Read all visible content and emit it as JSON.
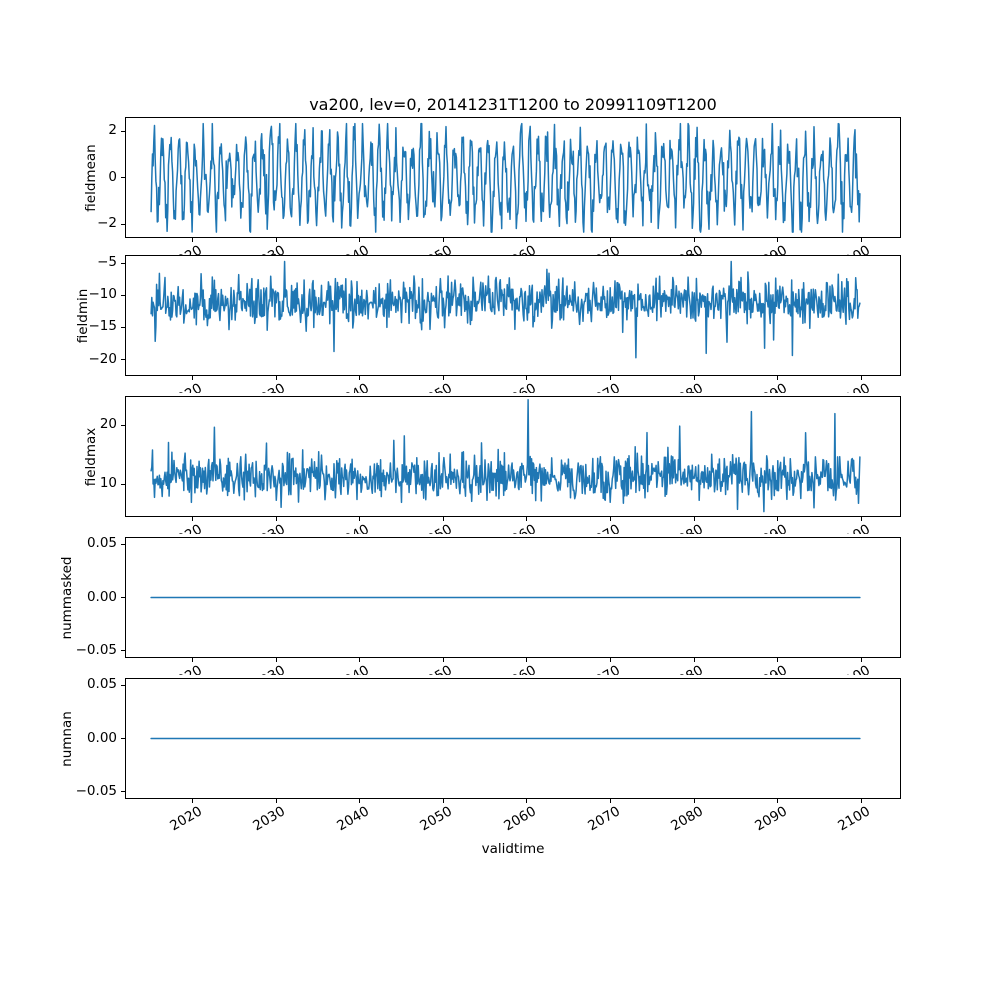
{
  "figure": {
    "background": "#ffffff",
    "text_color": "#000000"
  },
  "chart_data": {
    "type": "line",
    "title": "va200, lev=0, 20141231T1200 to 20991109T1200",
    "xlabel": "validtime",
    "line_color": "#1f77b4",
    "grid": false,
    "legend": "none",
    "x_start": 2015.0,
    "x_end": 2099.86,
    "n_points": 1020,
    "xlim": [
      2012.0,
      2104.66
    ],
    "xticks": [
      2020,
      2030,
      2040,
      2050,
      2060,
      2070,
      2080,
      2090,
      2100
    ],
    "xtick_labels": [
      "2020",
      "2030",
      "2040",
      "2050",
      "2060",
      "2070",
      "2080",
      "2090",
      "2100"
    ],
    "xtick_rotation_deg": 30,
    "subplots": [
      {
        "name": "fieldmean",
        "ylabel": "fieldmean",
        "ylim": [
          -2.56,
          2.56
        ],
        "yticks": [
          2,
          0,
          -2
        ],
        "ytick_labels": [
          "2",
          "0",
          "−2"
        ],
        "summary": {
          "mean": 0.0,
          "min": -2.3,
          "max": 2.3,
          "pattern": "dense annual oscillation with noise"
        },
        "gen": {
          "kind": "seasonal",
          "seed": 7,
          "base": 0,
          "amp": 1.5,
          "amp_jitter": 0.38,
          "period": 12,
          "phase": -0.6,
          "noise": 0.42,
          "clip": [
            -2.35,
            2.32
          ]
        }
      },
      {
        "name": "fieldmin",
        "ylabel": "fieldmin",
        "ylim": [
          -22.4,
          -3.9
        ],
        "yticks": [
          -5,
          -10,
          -15,
          -20
        ],
        "ytick_labels": [
          "−5",
          "−10",
          "−15",
          "−20"
        ],
        "summary": {
          "mean": -11.2,
          "min": -21.5,
          "max": -4.7,
          "pattern": "noisy band with occasional deep downward spikes"
        },
        "gen": {
          "kind": "noise",
          "seed": 42,
          "base": -11.1,
          "noise": 1.85,
          "spike_p": 0.012,
          "spike_amp": -5.5,
          "clip": [
            -21.55,
            -4.75
          ]
        }
      },
      {
        "name": "fieldmax",
        "ylabel": "fieldmax",
        "ylim": [
          4.6,
          24.8
        ],
        "yticks": [
          20,
          10
        ],
        "ytick_labels": [
          "20",
          "10"
        ],
        "summary": {
          "mean": 11.3,
          "min": 5.4,
          "max": 24.3,
          "pattern": "noisy band with occasional upward spikes"
        },
        "gen": {
          "kind": "noise",
          "seed": 99,
          "base": 11.2,
          "noise": 1.95,
          "spike_p": 0.01,
          "spike_amp": 6.5,
          "clip": [
            5.35,
            24.35
          ]
        }
      },
      {
        "name": "nummasked",
        "ylabel": "nummasked",
        "ylim": [
          -0.056,
          0.056
        ],
        "yticks": [
          0.05,
          0,
          -0.05
        ],
        "ytick_labels": [
          "0.05",
          "0.00",
          "−0.05"
        ],
        "summary": {
          "constant": 0,
          "pattern": "flat line at zero"
        },
        "gen": {
          "kind": "constant",
          "value": 0
        }
      },
      {
        "name": "numnan",
        "ylabel": "numnan",
        "ylim": [
          -0.056,
          0.056
        ],
        "yticks": [
          0.05,
          0,
          -0.05
        ],
        "ytick_labels": [
          "0.05",
          "0.00",
          "−0.05"
        ],
        "summary": {
          "constant": 0,
          "pattern": "flat line at zero"
        },
        "gen": {
          "kind": "constant",
          "value": 0
        }
      }
    ]
  }
}
